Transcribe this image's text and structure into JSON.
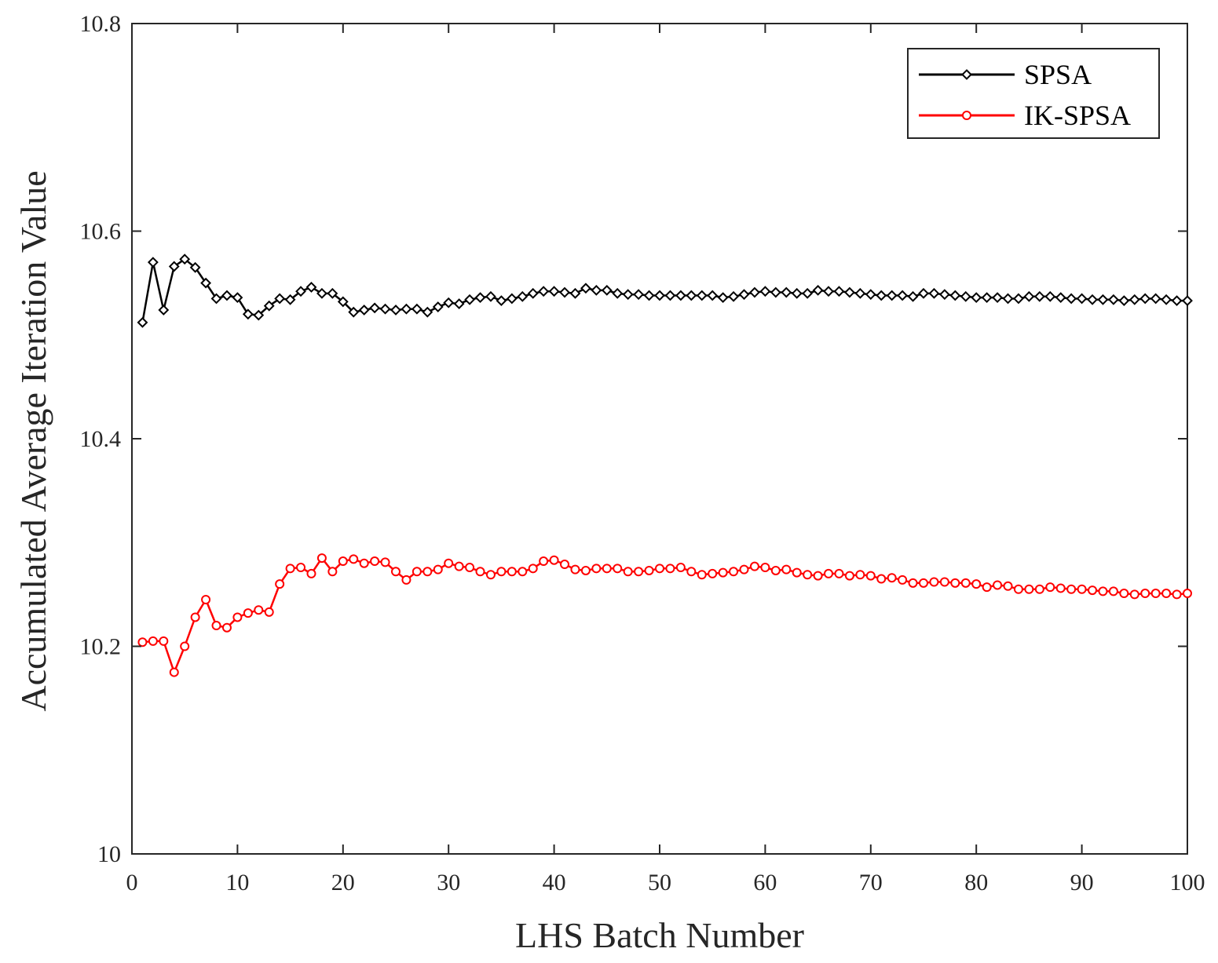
{
  "chart_data": {
    "type": "line",
    "xlabel": "LHS Batch Number",
    "ylabel": "Accumulated Average Iteration Value",
    "xlim": [
      0,
      100
    ],
    "ylim": [
      10,
      10.8
    ],
    "x_ticks": [
      0,
      10,
      20,
      30,
      40,
      50,
      60,
      70,
      80,
      90,
      100
    ],
    "x_tick_labels": [
      "0",
      "10",
      "20",
      "30",
      "40",
      "50",
      "60",
      "70",
      "80",
      "90",
      "100"
    ],
    "y_ticks": [
      10,
      10.2,
      10.4,
      10.6,
      10.8
    ],
    "y_tick_labels": [
      "10",
      "10.2",
      "10.4",
      "10.6",
      "10.8"
    ],
    "grid": false,
    "legend_position": "top-right",
    "x": [
      1,
      2,
      3,
      4,
      5,
      6,
      7,
      8,
      9,
      10,
      11,
      12,
      13,
      14,
      15,
      16,
      17,
      18,
      19,
      20,
      21,
      22,
      23,
      24,
      25,
      26,
      27,
      28,
      29,
      30,
      31,
      32,
      33,
      34,
      35,
      36,
      37,
      38,
      39,
      40,
      41,
      42,
      43,
      44,
      45,
      46,
      47,
      48,
      49,
      50,
      51,
      52,
      53,
      54,
      55,
      56,
      57,
      58,
      59,
      60,
      61,
      62,
      63,
      64,
      65,
      66,
      67,
      68,
      69,
      70,
      71,
      72,
      73,
      74,
      75,
      76,
      77,
      78,
      79,
      80,
      81,
      82,
      83,
      84,
      85,
      86,
      87,
      88,
      89,
      90,
      91,
      92,
      93,
      94,
      95,
      96,
      97,
      98,
      99,
      100
    ],
    "series": [
      {
        "name": "SPSA",
        "color": "#000000",
        "marker": "diamond",
        "values": [
          10.512,
          10.57,
          10.524,
          10.566,
          10.573,
          10.565,
          10.55,
          10.535,
          10.538,
          10.536,
          10.52,
          10.519,
          10.528,
          10.535,
          10.534,
          10.542,
          10.546,
          10.54,
          10.54,
          10.532,
          10.522,
          10.524,
          10.526,
          10.525,
          10.524,
          10.525,
          10.525,
          10.522,
          10.527,
          10.531,
          10.53,
          10.534,
          10.536,
          10.537,
          10.533,
          10.535,
          10.537,
          10.54,
          10.542,
          10.542,
          10.541,
          10.54,
          10.545,
          10.543,
          10.543,
          10.54,
          10.539,
          10.539,
          10.538,
          10.538,
          10.538,
          10.538,
          10.538,
          10.538,
          10.538,
          10.536,
          10.537,
          10.539,
          10.541,
          10.542,
          10.541,
          10.541,
          10.54,
          10.54,
          10.543,
          10.542,
          10.542,
          10.541,
          10.54,
          10.539,
          10.538,
          10.538,
          10.538,
          10.537,
          10.54,
          10.54,
          10.539,
          10.538,
          10.537,
          10.536,
          10.536,
          10.536,
          10.535,
          10.535,
          10.537,
          10.537,
          10.537,
          10.536,
          10.535,
          10.535,
          10.534,
          10.534,
          10.534,
          10.533,
          10.534,
          10.535,
          10.535,
          10.534,
          10.533,
          10.533
        ]
      },
      {
        "name": "IK-SPSA",
        "color": "#ff0000",
        "marker": "circle",
        "values": [
          10.204,
          10.205,
          10.205,
          10.175,
          10.2,
          10.228,
          10.245,
          10.22,
          10.218,
          10.228,
          10.232,
          10.235,
          10.233,
          10.26,
          10.275,
          10.276,
          10.27,
          10.285,
          10.272,
          10.282,
          10.284,
          10.28,
          10.282,
          10.281,
          10.272,
          10.264,
          10.272,
          10.272,
          10.274,
          10.28,
          10.277,
          10.276,
          10.272,
          10.269,
          10.272,
          10.272,
          10.272,
          10.275,
          10.282,
          10.283,
          10.279,
          10.274,
          10.273,
          10.275,
          10.275,
          10.275,
          10.272,
          10.272,
          10.273,
          10.275,
          10.275,
          10.276,
          10.272,
          10.269,
          10.27,
          10.271,
          10.272,
          10.274,
          10.277,
          10.276,
          10.273,
          10.274,
          10.271,
          10.269,
          10.268,
          10.27,
          10.27,
          10.268,
          10.269,
          10.268,
          10.265,
          10.266,
          10.264,
          10.261,
          10.261,
          10.262,
          10.262,
          10.261,
          10.261,
          10.26,
          10.257,
          10.259,
          10.258,
          10.255,
          10.255,
          10.255,
          10.257,
          10.256,
          10.255,
          10.255,
          10.254,
          10.253,
          10.253,
          10.251,
          10.25,
          10.251,
          10.251,
          10.251,
          10.25,
          10.251
        ]
      }
    ]
  }
}
